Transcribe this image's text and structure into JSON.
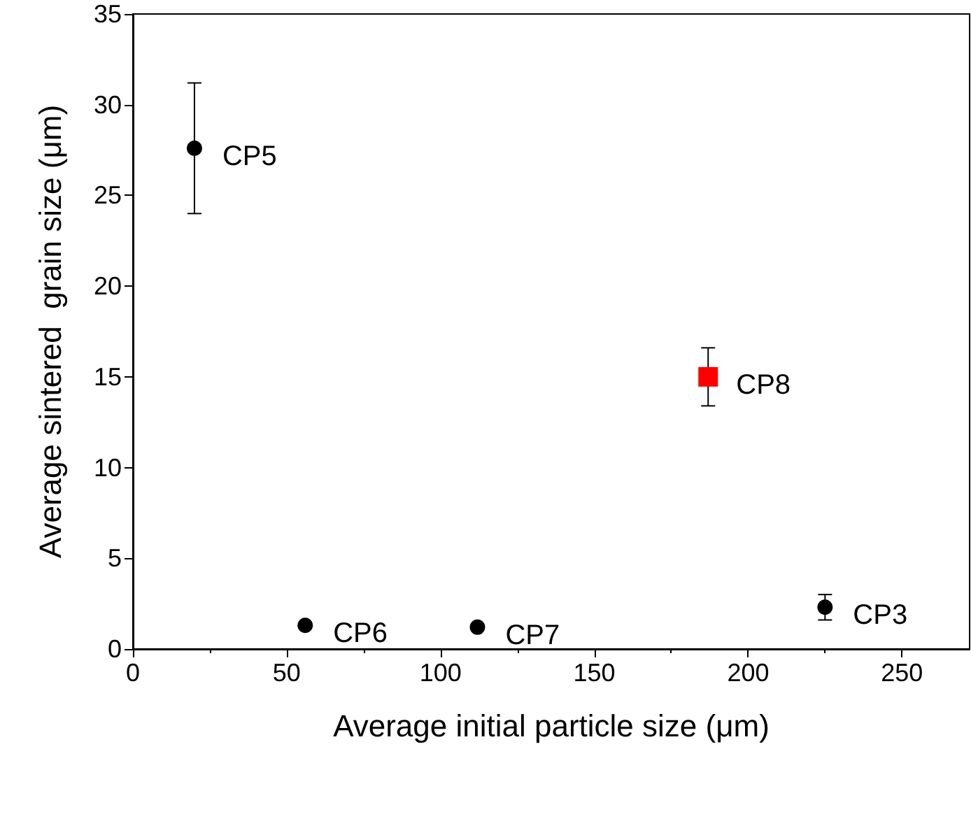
{
  "chart_data": {
    "type": "scatter",
    "xlabel": "Average initial particle size (μm)",
    "ylabel": "Average sintered  grain size (μm)",
    "xlim": [
      0,
      272
    ],
    "xticks": [
      0,
      50,
      100,
      150,
      200,
      250
    ],
    "ylim": [
      0,
      35
    ],
    "yticks": [
      0,
      5,
      10,
      15,
      20,
      25,
      30,
      35
    ],
    "grid": false,
    "series": [
      {
        "color": "#000000",
        "marker": "circle",
        "x": [
          20,
          56,
          112,
          225
        ],
        "values": [
          27.6,
          1.3,
          1.2,
          2.3
        ],
        "errors": [
          [
            24.0,
            31.2
          ],
          null,
          null,
          [
            1.6,
            3.0
          ]
        ]
      },
      {
        "color": "#ff0000",
        "marker": "square",
        "x": [
          187
        ],
        "values": [
          15.0
        ],
        "errors": [
          [
            13.4,
            16.6
          ]
        ]
      }
    ],
    "annotations": [
      {
        "text": "CP5",
        "x": 20,
        "y": 27.6
      },
      {
        "text": "CP6",
        "x": 56,
        "y": 1.3
      },
      {
        "text": "CP7",
        "x": 112,
        "y": 1.2
      },
      {
        "text": "CP3",
        "x": 225,
        "y": 2.3
      },
      {
        "text": "CP8",
        "x": 187,
        "y": 15.0
      }
    ]
  }
}
